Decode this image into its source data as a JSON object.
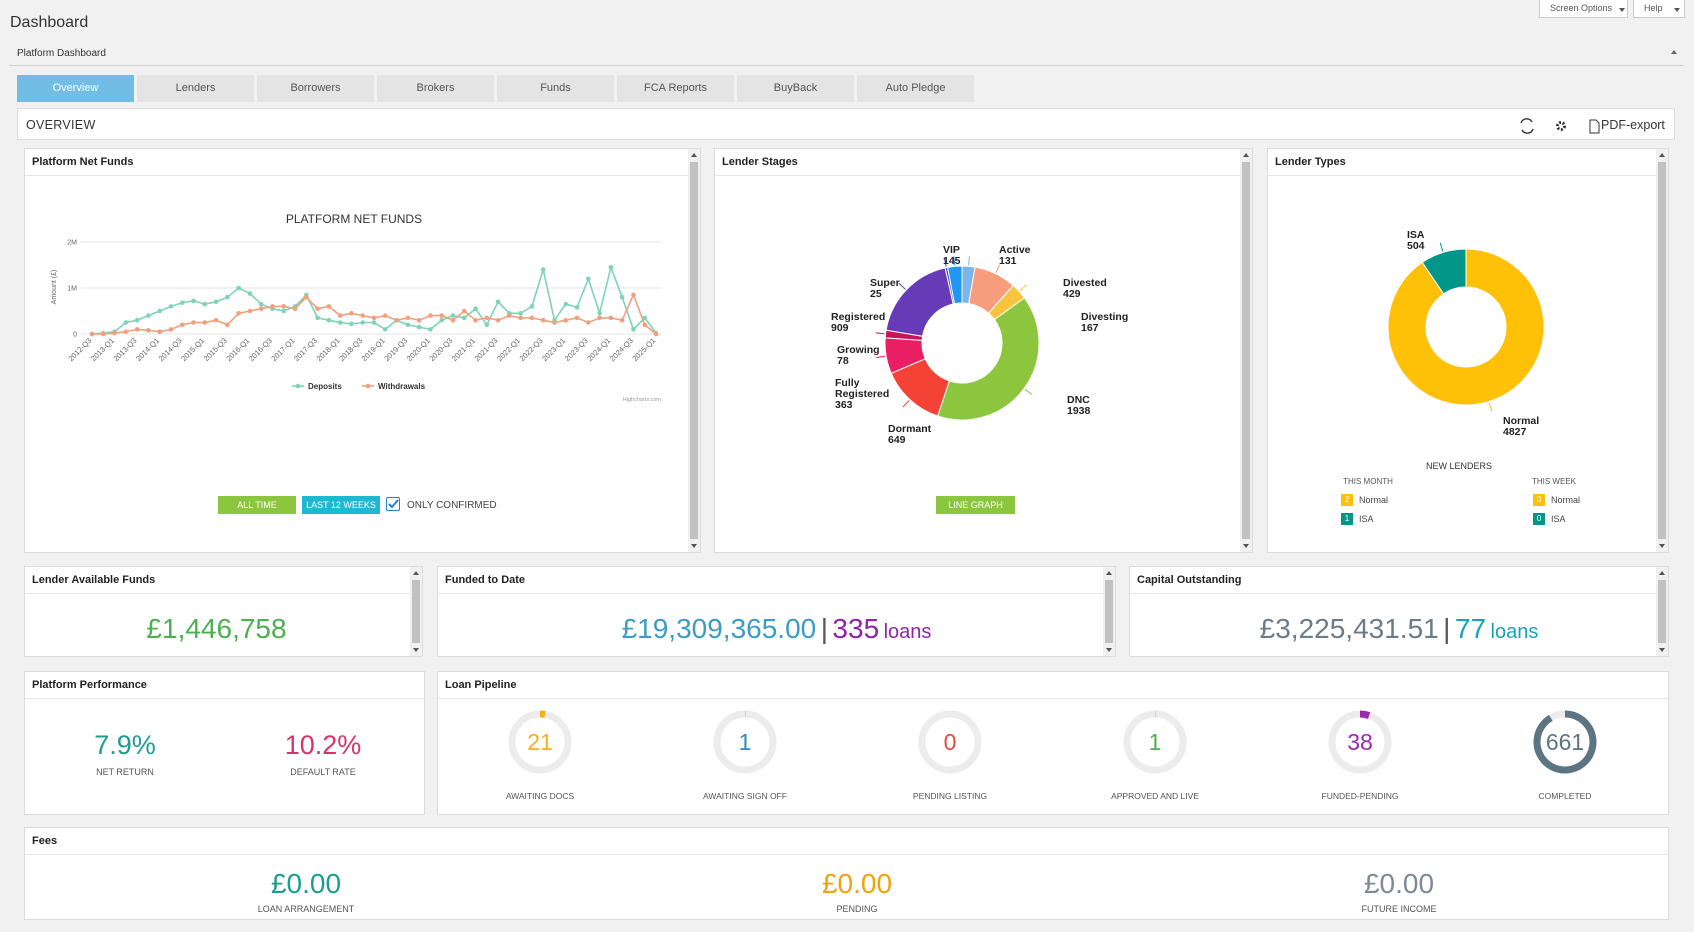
{
  "header": {
    "title": "Dashboard",
    "screen_options": "Screen Options",
    "help": "Help",
    "subtitle": "Platform Dashboard"
  },
  "tabs": [
    "Overview",
    "Lenders",
    "Borrowers",
    "Brokers",
    "Funds",
    "FCA Reports",
    "BuyBack",
    "Auto Pledge"
  ],
  "active_tab": 0,
  "overview": {
    "title": "OVERVIEW",
    "pdf_export": "PDF-export"
  },
  "platform_net_funds": {
    "panel_title": "Platform Net Funds",
    "chart": {
      "type": "line",
      "title": "PLATFORM NET FUNDS",
      "y_label": "Amount (£)",
      "credits": "Highcharts.com",
      "categories": [
        "2012-Q3",
        null,
        "2013-Q1",
        null,
        "2013-Q3",
        null,
        "2014-Q1",
        null,
        "2014-Q3",
        null,
        "2015-Q1",
        null,
        "2015-Q3",
        null,
        "2016-Q1",
        null,
        "2016-Q3",
        null,
        "2017-Q1",
        null,
        "2017-Q3",
        null,
        "2018-Q1",
        null,
        "2018-Q3",
        null,
        "2019-Q1",
        null,
        "2019-Q3",
        null,
        "2020-Q1",
        null,
        "2020-Q3",
        null,
        "2021-Q1",
        null,
        "2021-Q3",
        null,
        "2022-Q1",
        null,
        "2022-Q3",
        null,
        "2023-Q1",
        null,
        "2023-Q3",
        null,
        "2024-Q1",
        null,
        "2024-Q3",
        null,
        "2025-Q1"
      ],
      "series": [
        {
          "name": "Deposits",
          "color": "#7fd4b8",
          "values": [
            0,
            20000,
            50000,
            250000,
            300000,
            400000,
            500000,
            600000,
            680000,
            720000,
            650000,
            700000,
            800000,
            1000000,
            880000,
            650000,
            550000,
            500000,
            600000,
            850000,
            350000,
            300000,
            250000,
            220000,
            250000,
            250000,
            100000,
            300000,
            200000,
            150000,
            100000,
            300000,
            400000,
            350000,
            550000,
            200000,
            700000,
            450000,
            450000,
            600000,
            1400000,
            300000,
            650000,
            580000,
            1200000,
            450000,
            1450000,
            800000,
            100000,
            350000,
            20000
          ]
        },
        {
          "name": "Withdrawals",
          "color": "#f0a07e",
          "values": [
            0,
            0,
            20000,
            50000,
            100000,
            80000,
            50000,
            100000,
            200000,
            250000,
            250000,
            300000,
            200000,
            450000,
            500000,
            550000,
            600000,
            600000,
            550000,
            800000,
            550000,
            600000,
            400000,
            450000,
            400000,
            350000,
            400000,
            300000,
            350000,
            300000,
            400000,
            400000,
            300000,
            500000,
            300000,
            350000,
            300000,
            400000,
            350000,
            350000,
            300000,
            250000,
            300000,
            350000,
            250000,
            350000,
            350000,
            300000,
            850000,
            200000,
            0
          ]
        }
      ],
      "ylim": [
        0,
        2000000
      ],
      "yticks": [
        0,
        {
          "value": 1000000,
          "label": "1M"
        },
        {
          "value": 2000000,
          "label": "2M"
        }
      ],
      "grid": true,
      "legend": "bottom"
    },
    "buttons": [
      "ALL TIME",
      "LAST 12 WEEKS"
    ],
    "checkbox": {
      "label": "ONLY CONFIRMED",
      "checked": true
    }
  },
  "lender_stages": {
    "panel_title": "Lender Stages",
    "chart": {
      "type": "donut",
      "categories": [
        "Active",
        "Divested",
        "Divesting",
        "DNC",
        "Dormant",
        "Fully Registered",
        "Growing",
        "Registered",
        "Super",
        "VIP"
      ],
      "values": [
        131,
        429,
        167,
        1938,
        649,
        363,
        78,
        909,
        25,
        145
      ],
      "colors": [
        "#7cb5ec",
        "#f79c7c",
        "#f9c33d",
        "#8cc63f",
        "#f44336",
        "#e91e63",
        "#c2185b",
        "#673ab7",
        "#3f51b5",
        "#2196f3"
      ]
    },
    "button": "LINE GRAPH"
  },
  "lender_types": {
    "panel_title": "Lender Types",
    "chart": {
      "type": "donut",
      "categories": [
        "Normal",
        "ISA"
      ],
      "values": [
        4827,
        504
      ],
      "colors": [
        "#ffc107",
        "#009688"
      ]
    },
    "new_lenders": {
      "title": "NEW LENDERS",
      "periods": [
        {
          "label": "THIS MONTH",
          "rows": [
            {
              "name": "Normal",
              "count": 2
            },
            {
              "name": "ISA",
              "count": 1
            }
          ]
        },
        {
          "label": "THIS WEEK",
          "rows": [
            {
              "name": "Normal",
              "count": 0
            },
            {
              "name": "ISA",
              "count": 0
            }
          ]
        }
      ]
    }
  },
  "lender_available_funds": {
    "title": "Lender Available Funds",
    "value": "£1,446,758"
  },
  "funded_to_date": {
    "title": "Funded to Date",
    "amount": "£19,309,365.00",
    "separator": "|",
    "count": "335",
    "unit": "loans"
  },
  "capital_outstanding": {
    "title": "Capital Outstanding",
    "amount": "£3,225,431.51",
    "separator": "|",
    "count": "77",
    "unit": "loans"
  },
  "platform_performance": {
    "title": "Platform Performance",
    "metrics": [
      {
        "value": "7.9%",
        "label": "NET RETURN"
      },
      {
        "value": "10.2%",
        "label": "DEFAULT RATE"
      }
    ]
  },
  "loan_pipeline": {
    "title": "Loan Pipeline",
    "stages": [
      {
        "label": "AWAITING DOCS",
        "count": 21,
        "color": "#f2b01e"
      },
      {
        "label": "AWAITING SIGN OFF",
        "count": 1,
        "color": "#2a8fbd"
      },
      {
        "label": "PENDING LISTING",
        "count": 0,
        "color": "#e04b3c"
      },
      {
        "label": "APPROVED AND LIVE",
        "count": 1,
        "color": "#4caf50"
      },
      {
        "label": "FUNDED-PENDING",
        "count": 38,
        "color": "#9c27b0"
      },
      {
        "label": "COMPLETED",
        "count": 661,
        "color": "#5d7583"
      }
    ]
  },
  "fees": {
    "title": "Fees",
    "items": [
      {
        "value": "£0.00",
        "label": "LOAN ARRANGEMENT",
        "color": "#1b9e8f"
      },
      {
        "value": "£0.00",
        "label": "PENDING",
        "color": "#f0a30a"
      },
      {
        "value": "£0.00",
        "label": "FUTURE INCOME",
        "color": "#7d8a96"
      }
    ]
  }
}
